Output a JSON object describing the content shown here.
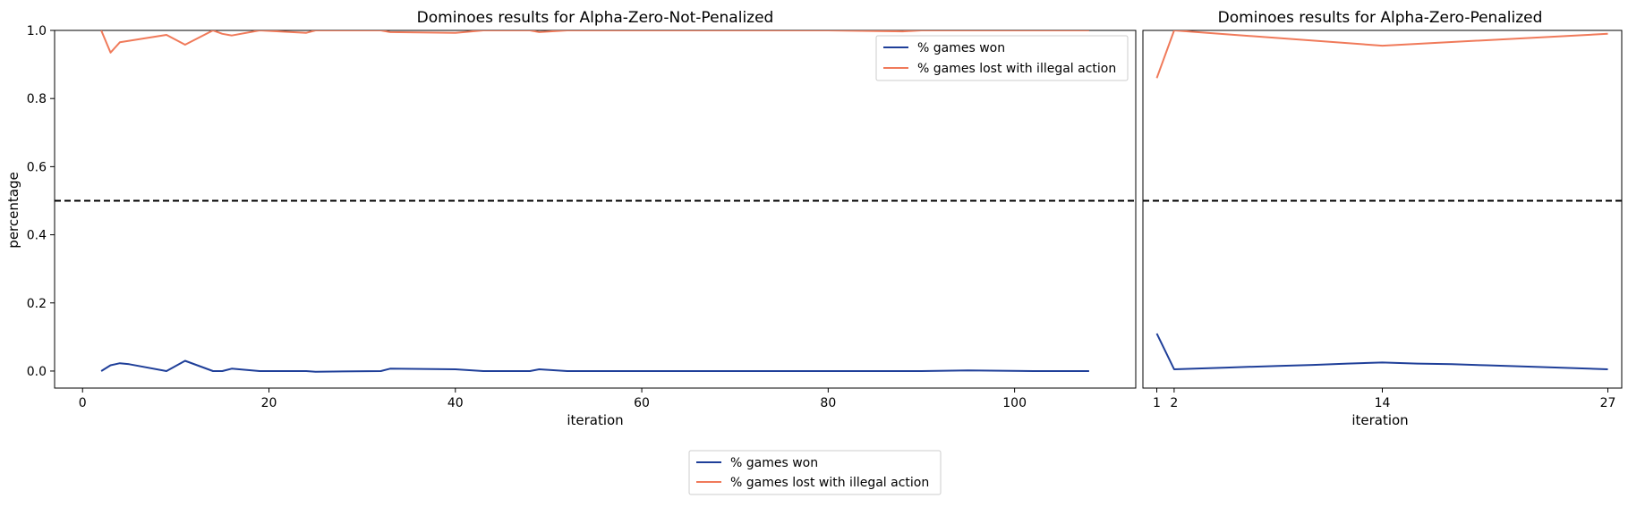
{
  "chart_data": [
    {
      "type": "line",
      "title": "Dominoes results for Alpha-Zero-Not-Penalized",
      "xlabel": "iteration",
      "ylabel": "percentage",
      "xlim": [
        -3,
        113
      ],
      "ylim": [
        -0.05,
        1.0
      ],
      "xticks": [
        0,
        20,
        40,
        60,
        80,
        100
      ],
      "yticks": [
        0.0,
        0.2,
        0.4,
        0.6,
        0.8,
        1.0
      ],
      "reference_line": {
        "y": 0.5,
        "style": "dashed"
      },
      "legend_position": "top-right",
      "series": [
        {
          "name": "% games won",
          "color": "#1f3f99",
          "x": [
            2,
            3,
            4,
            5,
            9,
            11,
            14,
            15,
            16,
            19,
            24,
            25,
            32,
            33,
            40,
            43,
            48,
            49,
            52,
            60,
            70,
            80,
            90,
            95,
            102,
            108
          ],
          "y": [
            0.0,
            0.017,
            0.023,
            0.02,
            0.0,
            0.03,
            0.0,
            0.0,
            0.007,
            0.0,
            0.0,
            -0.002,
            0.0,
            0.007,
            0.005,
            0.0,
            0.0,
            0.005,
            0.0,
            0.0,
            0.0,
            0.0,
            0.0,
            0.002,
            0.0,
            0.0
          ]
        },
        {
          "name": "% games lost with illegal action",
          "color": "#f07a5a",
          "x": [
            2,
            3,
            4,
            9,
            11,
            14,
            15,
            16,
            19,
            24,
            25,
            32,
            33,
            40,
            43,
            48,
            49,
            52,
            60,
            70,
            80,
            88,
            90,
            95,
            102,
            108
          ],
          "y": [
            1.0,
            0.935,
            0.965,
            0.987,
            0.958,
            1.0,
            0.99,
            0.985,
            1.0,
            0.993,
            1.0,
            1.0,
            0.995,
            0.993,
            1.0,
            1.0,
            0.995,
            1.0,
            1.0,
            1.0,
            1.0,
            0.997,
            1.0,
            1.0,
            1.0,
            1.0
          ]
        }
      ]
    },
    {
      "type": "line",
      "title": "Dominoes results for Alpha-Zero-Penalized",
      "xlabel": "iteration",
      "xlim": [
        0.2,
        27.8
      ],
      "ylim": [
        -0.05,
        1.0
      ],
      "xticks": [
        1,
        2,
        14,
        27
      ],
      "reference_line": {
        "y": 0.5,
        "style": "dashed"
      },
      "series": [
        {
          "name": "% games won",
          "color": "#1f3f99",
          "x": [
            1,
            2,
            5,
            8,
            10,
            12,
            14,
            16,
            18,
            20,
            23,
            27
          ],
          "y": [
            0.11,
            0.005,
            0.01,
            0.015,
            0.018,
            0.022,
            0.025,
            0.022,
            0.02,
            0.017,
            0.012,
            0.005
          ]
        },
        {
          "name": "% games lost with illegal action",
          "color": "#f07a5a",
          "x": [
            1,
            2,
            14,
            27
          ],
          "y": [
            0.86,
            1.0,
            0.955,
            0.99
          ]
        }
      ]
    }
  ],
  "figure_legend": [
    {
      "label": "% games won",
      "color": "#1f3f99"
    },
    {
      "label": "% games lost with illegal action",
      "color": "#f07a5a"
    }
  ]
}
